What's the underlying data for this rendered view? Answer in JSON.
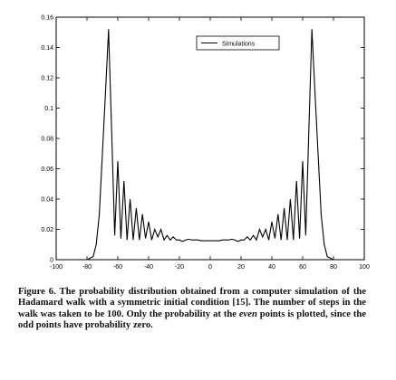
{
  "chart_data": {
    "type": "line",
    "xlim": [
      -100,
      100
    ],
    "ylim": [
      0,
      0.16
    ],
    "xticks": [
      "-100",
      "-80",
      "-60",
      "-40",
      "-20",
      "0",
      "20",
      "40",
      "60",
      "80",
      "100"
    ],
    "yticks": [
      "0",
      "0.02",
      "0.04",
      "0.06",
      "0.08",
      "0.1",
      "0.12",
      "0.14",
      "0.16"
    ],
    "legend_position": "top-right",
    "grid": false,
    "series": [
      {
        "name": "Simulations",
        "color": "#000000",
        "x": [
          -100,
          -80,
          -76,
          -74,
          -72,
          -70,
          -68,
          -66,
          -64,
          -62,
          -60,
          -58,
          -56,
          -54,
          -52,
          -50,
          -48,
          -46,
          -44,
          -42,
          -40,
          -38,
          -36,
          -34,
          -32,
          -30,
          -28,
          -26,
          -24,
          -22,
          -20,
          -18,
          -16,
          -14,
          -12,
          -10,
          -8,
          -6,
          -4,
          -2,
          0,
          2,
          4,
          6,
          8,
          10,
          12,
          14,
          16,
          18,
          20,
          22,
          24,
          26,
          28,
          30,
          32,
          34,
          36,
          38,
          40,
          42,
          44,
          46,
          48,
          50,
          52,
          54,
          56,
          58,
          60,
          62,
          64,
          66,
          68,
          70,
          72,
          74,
          76,
          80,
          100
        ],
        "y": [
          0,
          0,
          0.002,
          0.01,
          0.03,
          0.07,
          0.11,
          0.152,
          0.085,
          0.016,
          0.065,
          0.014,
          0.052,
          0.013,
          0.04,
          0.013,
          0.034,
          0.013,
          0.03,
          0.014,
          0.025,
          0.013,
          0.02,
          0.015,
          0.02,
          0.013,
          0.016,
          0.013,
          0.015,
          0.013,
          0.013,
          0.012,
          0.013,
          0.0135,
          0.013,
          0.013,
          0.013,
          0.0125,
          0.0125,
          0.0125,
          0.0125,
          0.0125,
          0.0125,
          0.0125,
          0.013,
          0.013,
          0.013,
          0.0135,
          0.013,
          0.012,
          0.013,
          0.013,
          0.015,
          0.013,
          0.016,
          0.013,
          0.02,
          0.015,
          0.02,
          0.013,
          0.025,
          0.014,
          0.03,
          0.013,
          0.034,
          0.013,
          0.04,
          0.013,
          0.052,
          0.014,
          0.065,
          0.016,
          0.085,
          0.152,
          0.11,
          0.07,
          0.03,
          0.01,
          0.002,
          0,
          0
        ]
      }
    ]
  },
  "caption": {
    "label": "Figure 6.",
    "text_before": "The probability distribution obtained from a computer simulation of the Hadamard walk with a symmetric initial condition [15]. The number of steps in the walk was taken to be 100. Only the probability at the",
    "emph": "even",
    "text_after": "points is plotted, since the odd points have probability zero."
  }
}
